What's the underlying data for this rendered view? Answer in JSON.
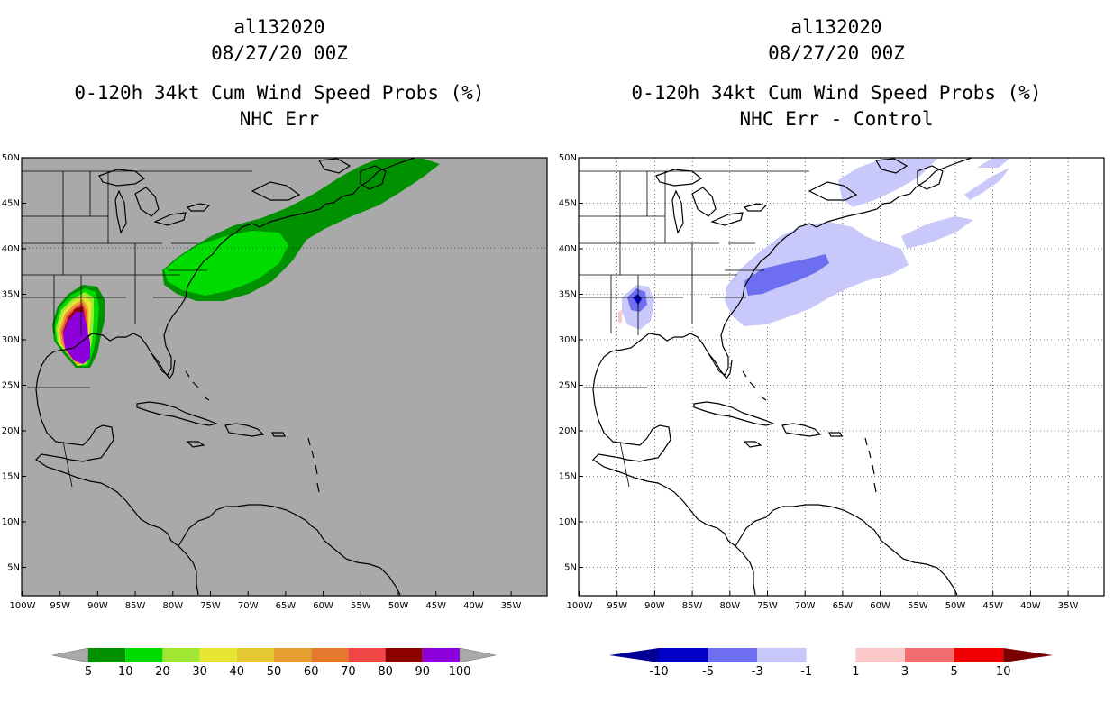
{
  "left_panel": {
    "title_line1": "al132020",
    "title_line2": "08/27/20 00Z",
    "title_line3": "0-120h 34kt Cum Wind Speed Probs (%)",
    "title_line4": "NHC Err",
    "background_color": "#a9a9a9",
    "colorbar": {
      "labels": [
        "5",
        "10",
        "20",
        "30",
        "40",
        "50",
        "60",
        "70",
        "80",
        "90",
        "100"
      ],
      "colors": [
        "#009100",
        "#00dc00",
        "#a0e632",
        "#e6e632",
        "#e6c832",
        "#e6a032",
        "#e6782d",
        "#f04646",
        "#8c0000",
        "#8c00dc"
      ],
      "extend_color": "#a9a9a9"
    }
  },
  "right_panel": {
    "title_line1": "al132020",
    "title_line2": "08/27/20 00Z",
    "title_line3": "0-120h 34kt Cum Wind Speed Probs (%)",
    "title_line4": "NHC Err - Control",
    "background_color": "#ffffff",
    "colorbar": {
      "labels": [
        "-10",
        "-5",
        "-3",
        "-1",
        "1",
        "3",
        "5",
        "10"
      ],
      "colors": [
        "#0000c8",
        "#6e6ef0",
        "#c8c8fa",
        "#ffffff",
        "#fac8c8",
        "#f06e6e",
        "#f00000"
      ],
      "extend_low": "#000096",
      "extend_high": "#780000"
    }
  },
  "axes": {
    "lat_labels": [
      "50N",
      "45N",
      "40N",
      "35N",
      "30N",
      "25N",
      "20N",
      "15N",
      "10N",
      "5N"
    ],
    "lon_labels": [
      "100W",
      "95W",
      "90W",
      "85W",
      "80W",
      "75W",
      "70W",
      "65W",
      "60W",
      "55W",
      "50W",
      "45W",
      "40W",
      "35W"
    ]
  }
}
